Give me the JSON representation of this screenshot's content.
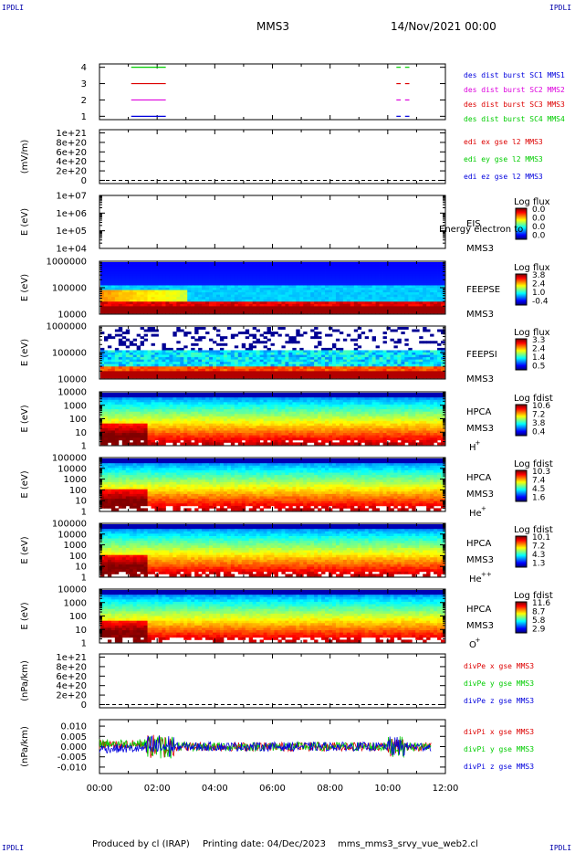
{
  "header": {
    "corner_label": "IPDLI",
    "spacecraft": "MMS3",
    "datetime": "14/Nov/2021 00:00"
  },
  "footer": {
    "produced_by": "Produced by cl (IRAP)",
    "printing_date": "Printing date: 04/Dec/2023",
    "script_name": "mms_mms3_srvy_vue_web2.cl"
  },
  "colors": {
    "red": "#dd0000",
    "green": "#00cc00",
    "blue": "#0000dd",
    "magenta": "#dd00dd"
  },
  "chart_data": [
    {
      "type": "line",
      "title": "",
      "ylim": [
        0.5,
        4.5
      ],
      "yticks": [
        "1",
        "2",
        "3",
        "4"
      ],
      "legend": [
        {
          "name": "des dist burst SC1 MMS1",
          "color": "#0000dd"
        },
        {
          "name": "des dist burst SC2 MMS2",
          "color": "#dd00dd"
        },
        {
          "name": "des dist burst SC3 MMS3",
          "color": "#dd0000"
        },
        {
          "name": "des dist burst SC4 MMS4",
          "color": "#00cc00"
        }
      ],
      "series": [
        {
          "name": "des dist burst SC4 MMS4",
          "level": 4,
          "segments": [
            [
              1.1,
              2.3
            ],
            [
              10.3,
              10.45
            ],
            [
              10.6,
              10.75
            ]
          ]
        },
        {
          "name": "des dist burst SC3 MMS3",
          "level": 3,
          "segments": [
            [
              1.1,
              2.3
            ],
            [
              10.3,
              10.45
            ],
            [
              10.6,
              10.75
            ]
          ]
        },
        {
          "name": "des dist burst SC2 MMS2",
          "level": 2,
          "segments": [
            [
              1.1,
              2.3
            ],
            [
              10.3,
              10.45
            ],
            [
              10.6,
              10.75
            ]
          ]
        },
        {
          "name": "des dist burst SC1 MMS1",
          "level": 1,
          "segments": [
            [
              1.1,
              2.3
            ],
            [
              10.3,
              10.45
            ],
            [
              10.6,
              10.75
            ]
          ]
        }
      ],
      "ylabel": ""
    },
    {
      "type": "line",
      "ylabel": "(mV/m)",
      "ylim": [
        0,
        1.1
      ],
      "yticks": [
        "0",
        "2e+20",
        "4e+20",
        "6e+20",
        "8e+20",
        "1e+21"
      ],
      "legend": [
        {
          "name": "edi ex gse l2 MMS3",
          "color": "#dd0000"
        },
        {
          "name": "edi ey gse l2 MMS3",
          "color": "#00cc00"
        },
        {
          "name": "edi ez gse l2 MMS3",
          "color": "#0000dd"
        }
      ]
    },
    {
      "type": "heatmap",
      "ylabel": "E (eV)",
      "yticks": [
        "1e+04",
        "1e+05",
        "1e+06",
        "1e+07"
      ],
      "instrument": [
        "EIS",
        "MMS3"
      ],
      "overlay_text": "Energy electron to",
      "colorbar": {
        "title": "Log flux",
        "ticks": [
          "0.0",
          "0.0",
          "0.0",
          "0.0"
        ]
      },
      "scale": "log"
    },
    {
      "type": "heatmap",
      "ylabel": "E (eV)",
      "yticks": [
        "10000",
        "100000",
        "1000000"
      ],
      "instrument": [
        "FEEPSE",
        "MMS3"
      ],
      "colorbar": {
        "title": "Log flux",
        "ticks": [
          "3.8",
          "2.4",
          "1.0",
          "-0.4"
        ]
      },
      "scale": "log"
    },
    {
      "type": "heatmap",
      "ylabel": "E (eV)",
      "yticks": [
        "10000",
        "100000",
        "1000000"
      ],
      "instrument": [
        "FEEPSI",
        "MMS3"
      ],
      "colorbar": {
        "title": "Log flux",
        "ticks": [
          "3.3",
          "2.4",
          "1.4",
          "0.5"
        ]
      },
      "scale": "log"
    },
    {
      "type": "heatmap",
      "ylabel": "E (eV)",
      "yticks": [
        "1",
        "10",
        "100",
        "1000",
        "10000"
      ],
      "instrument": [
        "HPCA",
        "MMS3",
        "H",
        "+"
      ],
      "colorbar": {
        "title": "Log fdist",
        "ticks": [
          "10.6",
          "7.2",
          "3.8",
          "0.4"
        ]
      },
      "scale": "log"
    },
    {
      "type": "heatmap",
      "ylabel": "E (eV)",
      "yticks": [
        "1",
        "10",
        "100",
        "1000",
        "10000",
        "100000"
      ],
      "instrument": [
        "HPCA",
        "MMS3",
        "He",
        "+"
      ],
      "colorbar": {
        "title": "Log fdist",
        "ticks": [
          "10.3",
          "7.4",
          "4.5",
          "1.6"
        ]
      },
      "scale": "log"
    },
    {
      "type": "heatmap",
      "ylabel": "E (eV)",
      "yticks": [
        "1",
        "10",
        "100",
        "1000",
        "10000",
        "100000"
      ],
      "instrument": [
        "HPCA",
        "MMS3",
        "He",
        "++"
      ],
      "colorbar": {
        "title": "Log fdist",
        "ticks": [
          "10.1",
          "7.2",
          "4.3",
          "1.3"
        ]
      },
      "scale": "log"
    },
    {
      "type": "heatmap",
      "ylabel": "E (eV)",
      "yticks": [
        "1",
        "10",
        "100",
        "1000",
        "10000"
      ],
      "instrument": [
        "HPCA",
        "MMS3",
        "O",
        "+"
      ],
      "colorbar": {
        "title": "Log fdist",
        "ticks": [
          "11.6",
          "8.7",
          "5.8",
          "2.9"
        ]
      },
      "scale": "log"
    },
    {
      "type": "line",
      "ylabel": "(nPa/km)",
      "ylim": [
        0,
        1.1
      ],
      "yticks": [
        "0",
        "2e+20",
        "4e+20",
        "6e+20",
        "8e+20",
        "1e+21"
      ],
      "legend": [
        {
          "name": "divPe x gse MMS3",
          "color": "#dd0000"
        },
        {
          "name": "divPe y gse MMS3",
          "color": "#00cc00"
        },
        {
          "name": "divPe z gse MMS3",
          "color": "#0000dd"
        }
      ]
    },
    {
      "type": "line",
      "ylabel": "(nPa/km)",
      "ylim": [
        -0.013,
        0.012
      ],
      "yticks": [
        "-0.010",
        "-0.005",
        "0.000",
        "0.005",
        "0.010"
      ],
      "legend": [
        {
          "name": "divPi x gse MMS3",
          "color": "#dd0000"
        },
        {
          "name": "divPi y gse MMS3",
          "color": "#00cc00"
        },
        {
          "name": "divPi z gse MMS3",
          "color": "#0000dd"
        }
      ],
      "x_range_hours": [
        0,
        11.5
      ]
    }
  ],
  "x_axis": {
    "range_hours": [
      0,
      12
    ],
    "tick_labels": [
      "00:00",
      "02:00",
      "04:00",
      "06:00",
      "08:00",
      "10:00",
      "12:00"
    ]
  }
}
